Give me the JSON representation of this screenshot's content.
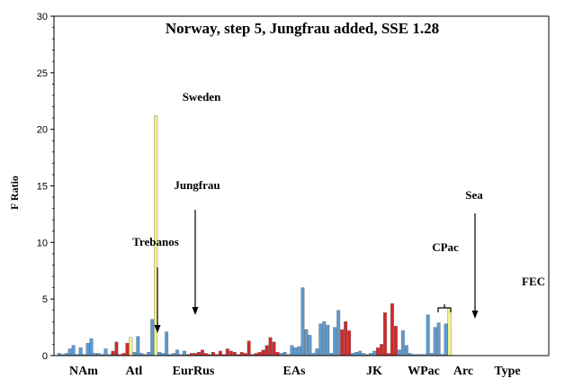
{
  "chart_data": {
    "type": "bar",
    "title": "Norway, step 5, Jungfrau added, SSE 1.28",
    "ylabel": "F Ratio",
    "xlabel": "",
    "ylim": [
      0,
      30
    ],
    "yticks": [
      0,
      5,
      10,
      15,
      20,
      25,
      30
    ],
    "grid": false,
    "colors": {
      "blue": "#5b9bd5",
      "red": "#d62728",
      "yellow": "#f4f48a",
      "axis": "#000000"
    },
    "series": [
      {
        "name": "",
        "color": "blue",
        "values": [
          0.2,
          0.1,
          0.2,
          0.6,
          0.9,
          0.1,
          0.7,
          0.1,
          1.1,
          1.5,
          0.2,
          0.2,
          0.1,
          0.6,
          0.1
        ]
      },
      {
        "name": "",
        "color": "red",
        "values": [
          0.4,
          1.2,
          0.1,
          0.2,
          1.1
        ]
      },
      {
        "name": "",
        "color": "yellow",
        "values": [
          1.6
        ]
      },
      {
        "name": "",
        "color": "blue",
        "values": [
          0.3,
          1.7,
          0.2,
          0.1,
          0.3,
          3.2
        ]
      },
      {
        "name": "",
        "color": "yellow",
        "values": [
          21.2
        ]
      },
      {
        "name": "",
        "color": "blue",
        "values": [
          0.3,
          0.2,
          2.1,
          0.1,
          0.2,
          0.5,
          0.1,
          0.4
        ]
      },
      {
        "name": "",
        "color": "red",
        "values": [
          0.1,
          0.2,
          0.2,
          0.3,
          0.5,
          0.2,
          0.1,
          0.3,
          0.1,
          0.4,
          0.1,
          0.6,
          0.4,
          0.3,
          0.1,
          0.3,
          0.2,
          1.3,
          0.1,
          0.2,
          0.3,
          0.5,
          0.9,
          1.6,
          1.2,
          0.3
        ]
      },
      {
        "name": "",
        "color": "blue",
        "values": [
          0.2,
          0.3,
          0.1,
          0.9,
          0.7,
          0.8,
          6.0,
          2.3,
          1.8,
          0.2,
          0.6,
          2.8,
          3.0,
          2.7,
          0.2,
          2.5,
          4.0
        ]
      },
      {
        "name": "",
        "color": "red",
        "values": [
          2.3,
          3.0,
          2.2
        ]
      },
      {
        "name": "",
        "color": "blue",
        "values": [
          0.2,
          0.3,
          0.4,
          0.2,
          0.1,
          0.2,
          0.4
        ]
      },
      {
        "name": "",
        "color": "red",
        "values": [
          0.7,
          1.0,
          3.8,
          0.2,
          4.6,
          2.6
        ]
      },
      {
        "name": "",
        "color": "blue",
        "values": [
          0.5,
          2.2,
          0.9,
          0.2,
          0.1,
          0.1,
          0.1,
          0.1,
          3.6,
          0.2,
          2.5,
          2.9,
          0.1,
          2.8
        ]
      },
      {
        "name": "",
        "color": "yellow",
        "values": [
          4.2
        ]
      }
    ],
    "group_labels": [
      "NAm",
      "Atl",
      "EurRus",
      "EAs",
      "JK",
      "WPac",
      "Arc",
      "Type"
    ],
    "annotations": [
      "Sweden",
      "Jungfrau",
      "Trebanos",
      "CPac",
      "Sea",
      "FEC"
    ]
  }
}
